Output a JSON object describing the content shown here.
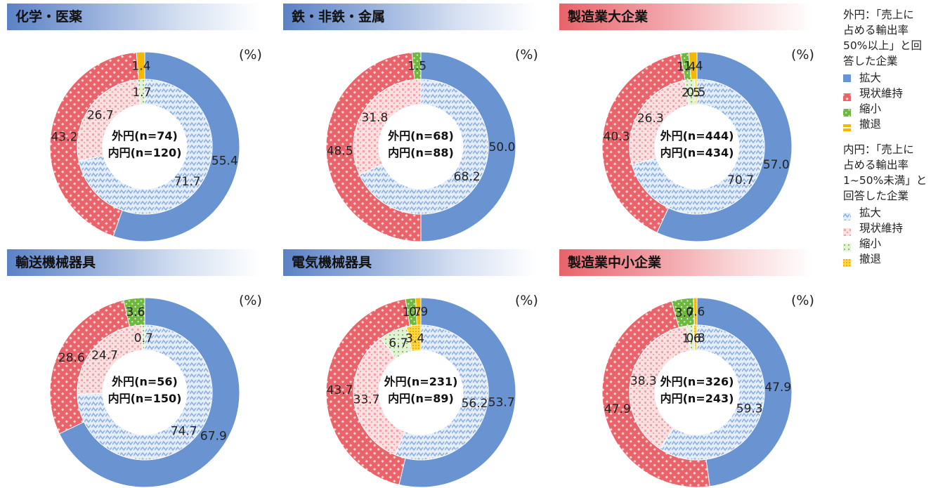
{
  "legend": {
    "outer_caption": "外円：「売上に占める輸出率50%以上」と回答した企業",
    "outer_caption_lines": [
      "外円：「売上に",
      "占める輸出率",
      "50%以上」と回",
      "答した企業"
    ],
    "inner_caption": "内円：「売上に占める輸出率1~50%未満」と回答した企業",
    "inner_caption_lines": [
      "内円：「売上に",
      "占める輸出率",
      "1~50%未満」と",
      "回答した企業"
    ],
    "categories": [
      "拡大",
      "現状維持",
      "縮小",
      "撤退"
    ],
    "colors": {
      "拡大": "#6a93d1",
      "現状維持": "#e8636a",
      "縮小": "#7cbc4a",
      "撤退": "#f5b800"
    }
  },
  "unit_label": "(%)",
  "chart_data": [
    {
      "type": "pie",
      "title": "化学・医薬",
      "categories": [
        "拡大",
        "現状維持",
        "縮小",
        "撤退"
      ],
      "series": [
        {
          "name": "外円",
          "n_label": "外円(n=74)",
          "values": [
            55.4,
            43.2,
            0,
            1.4
          ]
        },
        {
          "name": "内円",
          "n_label": "内円(n=120)",
          "values": [
            71.7,
            26.7,
            1.7,
            0
          ]
        }
      ]
    },
    {
      "type": "pie",
      "title": "鉄・非鉄・金属",
      "categories": [
        "拡大",
        "現状維持",
        "縮小",
        "撤退"
      ],
      "series": [
        {
          "name": "外円",
          "n_label": "外円(n=68)",
          "values": [
            50.0,
            48.5,
            1.5,
            0
          ]
        },
        {
          "name": "内円",
          "n_label": "内円(n=88)",
          "values": [
            68.2,
            31.8,
            0,
            0
          ]
        }
      ]
    },
    {
      "type": "pie",
      "title": "製造業大企業",
      "categories": [
        "拡大",
        "現状維持",
        "縮小",
        "撤退"
      ],
      "series": [
        {
          "name": "外円",
          "n_label": "外円(n=444)",
          "values": [
            57.0,
            40.3,
            1.4,
            1.4
          ]
        },
        {
          "name": "内円",
          "n_label": "内円(n=434)",
          "values": [
            70.7,
            26.3,
            2.5,
            0.5
          ]
        }
      ]
    },
    {
      "type": "pie",
      "title": "輸送機械器具",
      "categories": [
        "拡大",
        "現状維持",
        "縮小",
        "撤退"
      ],
      "series": [
        {
          "name": "外円",
          "n_label": "外円(n=56)",
          "values": [
            67.9,
            28.6,
            3.6,
            0
          ]
        },
        {
          "name": "内円",
          "n_label": "内円(n=150)",
          "values": [
            74.7,
            24.7,
            0.7,
            0
          ]
        }
      ]
    },
    {
      "type": "pie",
      "title": "電気機械器具",
      "categories": [
        "拡大",
        "現状維持",
        "縮小",
        "撤退"
      ],
      "series": [
        {
          "name": "外円",
          "n_label": "外円(n=231)",
          "values": [
            53.7,
            43.7,
            1.7,
            0.9
          ]
        },
        {
          "name": "内円",
          "n_label": "内円(n=89)",
          "values": [
            56.2,
            33.7,
            6.7,
            3.4
          ]
        }
      ]
    },
    {
      "type": "pie",
      "title": "製造業中小企業",
      "categories": [
        "拡大",
        "現状維持",
        "縮小",
        "撤退"
      ],
      "series": [
        {
          "name": "外円",
          "n_label": "外円(n=326)",
          "values": [
            47.9,
            47.9,
            3.7,
            0.6
          ]
        },
        {
          "name": "内円",
          "n_label": "内円(n=243)",
          "values": [
            59.3,
            38.3,
            1.6,
            0.8
          ]
        }
      ]
    }
  ]
}
